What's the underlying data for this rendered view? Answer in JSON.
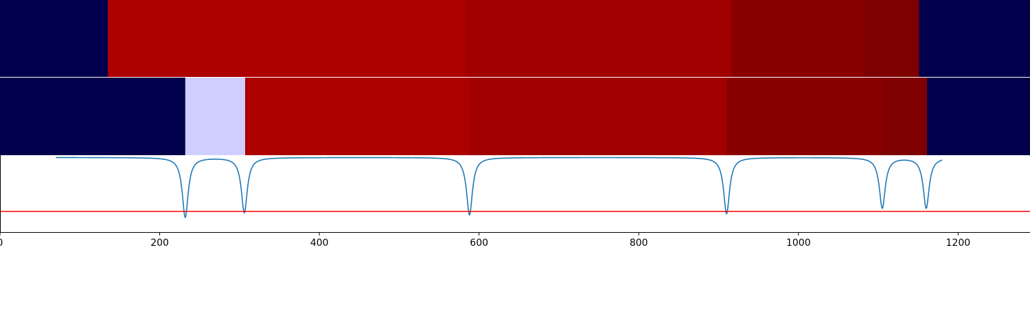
{
  "chart_data": [
    {
      "type": "heatmap",
      "title": "",
      "xlim": [
        0,
        1290
      ],
      "segments": [
        {
          "start": 0,
          "end": 135,
          "color": "#00004c"
        },
        {
          "start": 135,
          "end": 583,
          "color": "#ad0000"
        },
        {
          "start": 583,
          "end": 916,
          "color": "#a00000"
        },
        {
          "start": 916,
          "end": 1081,
          "color": "#8a0000"
        },
        {
          "start": 1081,
          "end": 1151,
          "color": "#7f0000"
        },
        {
          "start": 1151,
          "end": 1290,
          "color": "#00004c"
        }
      ]
    },
    {
      "type": "heatmap",
      "title": "",
      "xlim": [
        0,
        1290
      ],
      "segments": [
        {
          "start": 0,
          "end": 232,
          "color": "#00004c"
        },
        {
          "start": 232,
          "end": 307,
          "color": "#cfcfff"
        },
        {
          "start": 307,
          "end": 588,
          "color": "#ad0000"
        },
        {
          "start": 588,
          "end": 910,
          "color": "#a00000"
        },
        {
          "start": 910,
          "end": 1105,
          "color": "#8a0000"
        },
        {
          "start": 1105,
          "end": 1161,
          "color": "#7f0000"
        },
        {
          "start": 1161,
          "end": 1290,
          "color": "#00004c"
        }
      ]
    },
    {
      "type": "line",
      "title": "",
      "xlabel": "",
      "ylabel": "",
      "xlim": [
        0,
        1290
      ],
      "ylim": [
        -0.65,
        0.02
      ],
      "x_ticks": [
        "0",
        "200",
        "400",
        "600",
        "800",
        "1000",
        "1200"
      ],
      "baseline": 0,
      "dips": [
        {
          "x": 232,
          "depth": 0.52
        },
        {
          "x": 306,
          "depth": 0.48
        },
        {
          "x": 588,
          "depth": 0.5
        },
        {
          "x": 910,
          "depth": 0.49
        },
        {
          "x": 1105,
          "depth": 0.44
        },
        {
          "x": 1160,
          "depth": 0.44
        }
      ],
      "series": [
        {
          "color": "#1f77b4"
        }
      ],
      "threshold": {
        "y": -0.47,
        "color": "#ff0000"
      }
    }
  ]
}
